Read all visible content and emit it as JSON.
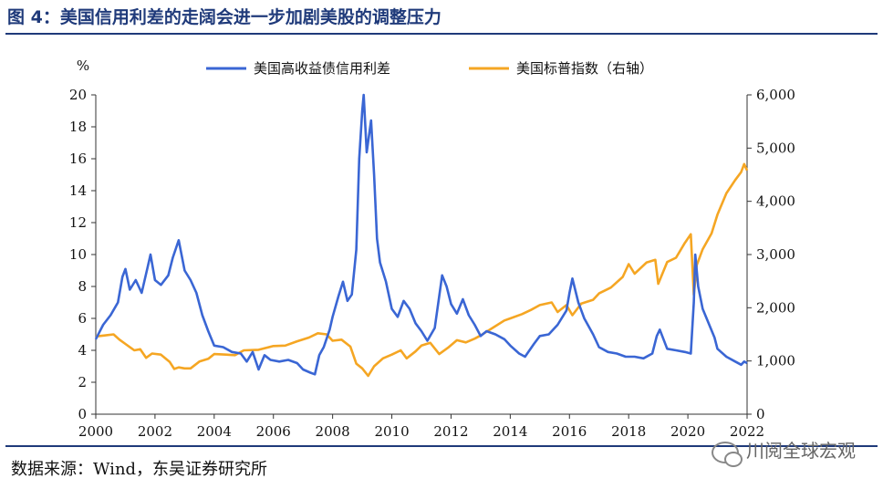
{
  "figure": {
    "title": "图 4：美国信用利差的走阔会进一步加剧美股的调整压力",
    "source": "数据来源：Wind，东吴证券研究所",
    "watermark": "川阅全球宏观",
    "watermark_icon": "wechat-logo-icon"
  },
  "chart_data": {
    "type": "line",
    "left_axis_unit": "%",
    "x_range": [
      2000,
      2022
    ],
    "x_ticks": [
      "2000",
      "2002",
      "2004",
      "2006",
      "2008",
      "2010",
      "2012",
      "2014",
      "2016",
      "2018",
      "2020",
      "2022"
    ],
    "y_left_range": [
      0,
      20
    ],
    "y_left_ticks": [
      "0",
      "2",
      "4",
      "6",
      "8",
      "10",
      "12",
      "14",
      "16",
      "18",
      "20"
    ],
    "y_right_range": [
      0,
      6000
    ],
    "y_right_ticks": [
      "0",
      "1,000",
      "2,000",
      "3,000",
      "4,000",
      "5,000",
      "6,000"
    ],
    "grid": false,
    "legend_position": "top",
    "series": [
      {
        "name": "美国高收益债信用利差",
        "axis": "left",
        "color": "#3a66d4",
        "points": [
          [
            2000.0,
            4.7
          ],
          [
            2000.25,
            5.6
          ],
          [
            2000.5,
            6.2
          ],
          [
            2000.75,
            7.0
          ],
          [
            2000.9,
            8.6
          ],
          [
            2001.0,
            9.1
          ],
          [
            2001.15,
            7.8
          ],
          [
            2001.35,
            8.4
          ],
          [
            2001.55,
            7.6
          ],
          [
            2001.75,
            9.2
          ],
          [
            2001.85,
            10.0
          ],
          [
            2002.0,
            8.4
          ],
          [
            2002.2,
            8.1
          ],
          [
            2002.45,
            8.7
          ],
          [
            2002.6,
            9.8
          ],
          [
            2002.8,
            10.9
          ],
          [
            2003.0,
            9.0
          ],
          [
            2003.2,
            8.4
          ],
          [
            2003.4,
            7.6
          ],
          [
            2003.6,
            6.2
          ],
          [
            2003.8,
            5.2
          ],
          [
            2004.0,
            4.3
          ],
          [
            2004.3,
            4.2
          ],
          [
            2004.6,
            3.9
          ],
          [
            2004.9,
            3.8
          ],
          [
            2005.1,
            3.3
          ],
          [
            2005.3,
            3.9
          ],
          [
            2005.5,
            2.8
          ],
          [
            2005.7,
            3.7
          ],
          [
            2005.9,
            3.4
          ],
          [
            2006.2,
            3.3
          ],
          [
            2006.5,
            3.4
          ],
          [
            2006.8,
            3.2
          ],
          [
            2007.0,
            2.8
          ],
          [
            2007.25,
            2.6
          ],
          [
            2007.4,
            2.5
          ],
          [
            2007.55,
            3.7
          ],
          [
            2007.7,
            4.2
          ],
          [
            2007.9,
            5.3
          ],
          [
            2008.0,
            6.1
          ],
          [
            2008.2,
            7.4
          ],
          [
            2008.35,
            8.3
          ],
          [
            2008.5,
            7.1
          ],
          [
            2008.65,
            7.5
          ],
          [
            2008.8,
            10.3
          ],
          [
            2008.9,
            16.0
          ],
          [
            2009.0,
            19.0
          ],
          [
            2009.05,
            20.0
          ],
          [
            2009.15,
            16.4
          ],
          [
            2009.3,
            18.4
          ],
          [
            2009.4,
            15.0
          ],
          [
            2009.5,
            11.0
          ],
          [
            2009.6,
            9.5
          ],
          [
            2009.8,
            8.3
          ],
          [
            2010.0,
            6.6
          ],
          [
            2010.2,
            6.1
          ],
          [
            2010.4,
            7.1
          ],
          [
            2010.6,
            6.6
          ],
          [
            2010.8,
            5.7
          ],
          [
            2011.0,
            5.2
          ],
          [
            2011.2,
            4.6
          ],
          [
            2011.45,
            5.4
          ],
          [
            2011.7,
            8.7
          ],
          [
            2011.85,
            8.0
          ],
          [
            2012.0,
            6.9
          ],
          [
            2012.2,
            6.3
          ],
          [
            2012.4,
            7.2
          ],
          [
            2012.6,
            6.2
          ],
          [
            2012.8,
            5.6
          ],
          [
            2013.0,
            4.9
          ],
          [
            2013.2,
            5.2
          ],
          [
            2013.5,
            5.0
          ],
          [
            2013.8,
            4.7
          ],
          [
            2014.0,
            4.3
          ],
          [
            2014.3,
            3.8
          ],
          [
            2014.5,
            3.6
          ],
          [
            2014.8,
            4.4
          ],
          [
            2015.0,
            4.9
          ],
          [
            2015.3,
            5.0
          ],
          [
            2015.6,
            5.6
          ],
          [
            2015.9,
            6.5
          ],
          [
            2016.0,
            7.6
          ],
          [
            2016.1,
            8.5
          ],
          [
            2016.3,
            7.0
          ],
          [
            2016.5,
            6.0
          ],
          [
            2016.8,
            5.0
          ],
          [
            2017.0,
            4.2
          ],
          [
            2017.3,
            3.9
          ],
          [
            2017.6,
            3.8
          ],
          [
            2017.9,
            3.6
          ],
          [
            2018.2,
            3.6
          ],
          [
            2018.5,
            3.5
          ],
          [
            2018.8,
            3.8
          ],
          [
            2018.95,
            4.9
          ],
          [
            2019.05,
            5.3
          ],
          [
            2019.3,
            4.1
          ],
          [
            2019.6,
            4.0
          ],
          [
            2019.9,
            3.9
          ],
          [
            2020.1,
            3.8
          ],
          [
            2020.2,
            7.0
          ],
          [
            2020.25,
            10.0
          ],
          [
            2020.35,
            8.0
          ],
          [
            2020.5,
            6.6
          ],
          [
            2020.7,
            5.7
          ],
          [
            2020.9,
            4.8
          ],
          [
            2021.0,
            4.1
          ],
          [
            2021.3,
            3.6
          ],
          [
            2021.6,
            3.3
          ],
          [
            2021.8,
            3.1
          ],
          [
            2021.9,
            3.3
          ],
          [
            2022.0,
            3.2
          ]
        ]
      },
      {
        "name": "美国标普指数（右轴）",
        "axis": "right",
        "color": "#f5a623",
        "points": [
          [
            2000.0,
            1460
          ],
          [
            2000.3,
            1480
          ],
          [
            2000.6,
            1500
          ],
          [
            2000.8,
            1400
          ],
          [
            2001.0,
            1320
          ],
          [
            2001.3,
            1200
          ],
          [
            2001.5,
            1220
          ],
          [
            2001.7,
            1060
          ],
          [
            2001.9,
            1140
          ],
          [
            2002.2,
            1120
          ],
          [
            2002.5,
            980
          ],
          [
            2002.65,
            850
          ],
          [
            2002.8,
            880
          ],
          [
            2003.0,
            860
          ],
          [
            2003.2,
            860
          ],
          [
            2003.5,
            990
          ],
          [
            2003.8,
            1040
          ],
          [
            2004.0,
            1130
          ],
          [
            2004.4,
            1120
          ],
          [
            2004.7,
            1110
          ],
          [
            2005.0,
            1200
          ],
          [
            2005.5,
            1210
          ],
          [
            2006.0,
            1280
          ],
          [
            2006.4,
            1290
          ],
          [
            2006.8,
            1370
          ],
          [
            2007.2,
            1440
          ],
          [
            2007.5,
            1520
          ],
          [
            2007.8,
            1500
          ],
          [
            2008.0,
            1380
          ],
          [
            2008.3,
            1400
          ],
          [
            2008.6,
            1270
          ],
          [
            2008.8,
            950
          ],
          [
            2009.0,
            860
          ],
          [
            2009.2,
            720
          ],
          [
            2009.4,
            900
          ],
          [
            2009.7,
            1050
          ],
          [
            2010.0,
            1120
          ],
          [
            2010.3,
            1200
          ],
          [
            2010.5,
            1050
          ],
          [
            2010.8,
            1180
          ],
          [
            2011.0,
            1290
          ],
          [
            2011.3,
            1340
          ],
          [
            2011.6,
            1130
          ],
          [
            2011.9,
            1250
          ],
          [
            2012.2,
            1390
          ],
          [
            2012.5,
            1350
          ],
          [
            2012.8,
            1420
          ],
          [
            2013.0,
            1480
          ],
          [
            2013.4,
            1620
          ],
          [
            2013.8,
            1760
          ],
          [
            2014.0,
            1800
          ],
          [
            2014.4,
            1880
          ],
          [
            2014.7,
            1960
          ],
          [
            2015.0,
            2050
          ],
          [
            2015.4,
            2100
          ],
          [
            2015.6,
            1920
          ],
          [
            2015.9,
            2050
          ],
          [
            2016.1,
            1860
          ],
          [
            2016.4,
            2080
          ],
          [
            2016.8,
            2150
          ],
          [
            2017.0,
            2270
          ],
          [
            2017.4,
            2380
          ],
          [
            2017.8,
            2580
          ],
          [
            2018.0,
            2820
          ],
          [
            2018.2,
            2640
          ],
          [
            2018.6,
            2850
          ],
          [
            2018.9,
            2900
          ],
          [
            2019.0,
            2450
          ],
          [
            2019.3,
            2860
          ],
          [
            2019.6,
            2940
          ],
          [
            2019.9,
            3220
          ],
          [
            2020.1,
            3380
          ],
          [
            2020.2,
            2240
          ],
          [
            2020.3,
            2800
          ],
          [
            2020.5,
            3100
          ],
          [
            2020.8,
            3400
          ],
          [
            2021.0,
            3750
          ],
          [
            2021.3,
            4150
          ],
          [
            2021.6,
            4400
          ],
          [
            2021.8,
            4550
          ],
          [
            2021.9,
            4700
          ],
          [
            2022.0,
            4580
          ]
        ]
      }
    ]
  }
}
